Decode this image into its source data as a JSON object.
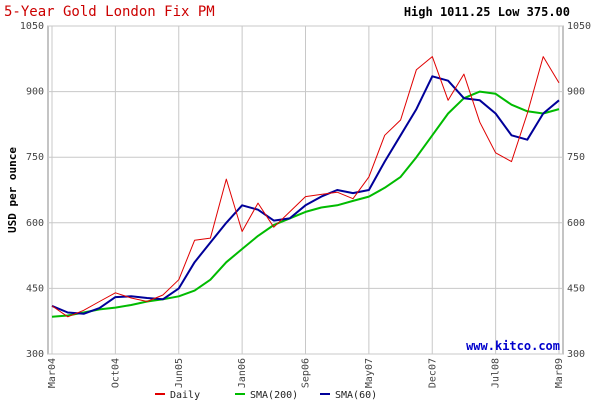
{
  "chart_data": {
    "type": "line",
    "title": "5-Year Gold London Fix PM",
    "high_low": "High 1011.25 Low 375.00",
    "ylabel": "USD per ounce",
    "xlabel": "",
    "watermark": "www.kitco.com",
    "ylim": [
      300,
      1050
    ],
    "yticks": [
      300,
      450,
      600,
      750,
      900,
      1050
    ],
    "grid": true,
    "legend_position": "bottom",
    "x_tick_labels": [
      "Mar04",
      "Oct04",
      "Jun05",
      "Jan06",
      "Sep06",
      "May07",
      "Dec07",
      "Jul08",
      "Mar09"
    ],
    "x": [
      "Mar04",
      "Jun04",
      "Aug04",
      "Oct04",
      "Dec04",
      "Mar05",
      "Jun05",
      "Sep05",
      "Nov05",
      "Jan06",
      "Mar06",
      "May06",
      "Jun06",
      "Aug06",
      "Oct06",
      "Dec06",
      "Feb07",
      "Mar07",
      "May07",
      "Jul07",
      "Sep07",
      "Nov07",
      "Dec07",
      "Feb08",
      "Mar08",
      "May08",
      "Jul08",
      "Aug08",
      "Oct08",
      "Nov08",
      "Jan09",
      "Feb09",
      "Mar09"
    ],
    "series": [
      {
        "name": "Daily",
        "color": "#e00000",
        "width": 1,
        "values": [
          410,
          385,
          400,
          420,
          440,
          428,
          420,
          435,
          470,
          560,
          565,
          700,
          580,
          645,
          590,
          625,
          660,
          665,
          670,
          655,
          705,
          800,
          835,
          950,
          980,
          880,
          940,
          830,
          760,
          740,
          850,
          980,
          920
        ]
      },
      {
        "name": "SMA(200)",
        "color": "#00bb00",
        "width": 2,
        "values": [
          385,
          388,
          395,
          402,
          406,
          412,
          420,
          425,
          432,
          445,
          470,
          510,
          540,
          570,
          595,
          610,
          625,
          635,
          640,
          650,
          660,
          680,
          705,
          750,
          800,
          850,
          885,
          900,
          895,
          870,
          855,
          850,
          860
        ]
      },
      {
        "name": "SMA(60)",
        "color": "#000099",
        "width": 2,
        "values": [
          410,
          395,
          392,
          405,
          430,
          432,
          428,
          425,
          450,
          510,
          555,
          600,
          640,
          630,
          605,
          610,
          640,
          660,
          675,
          668,
          675,
          740,
          800,
          860,
          935,
          925,
          885,
          880,
          850,
          800,
          790,
          850,
          880
        ]
      }
    ]
  }
}
